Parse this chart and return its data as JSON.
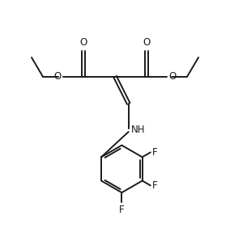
{
  "background_color": "#ffffff",
  "line_color": "#1a1a1a",
  "line_width": 1.4,
  "font_size": 8.5,
  "figsize": [
    2.84,
    2.98
  ],
  "dpi": 100,
  "xlim": [
    0,
    10
  ],
  "ylim": [
    0,
    10.5
  ]
}
